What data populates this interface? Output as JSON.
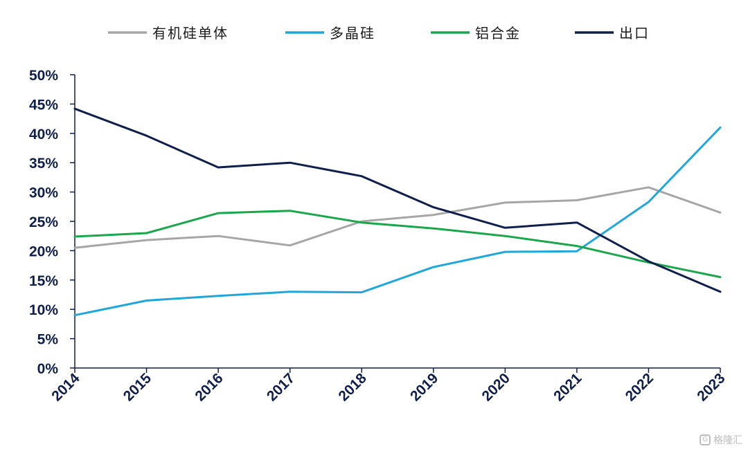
{
  "chart_data": {
    "type": "line",
    "categories": [
      "2014",
      "2015",
      "2016",
      "2017",
      "2018",
      "2019",
      "2020",
      "2021",
      "2022",
      "2023"
    ],
    "ylim": [
      0,
      50
    ],
    "yticks": [
      "0%",
      "5%",
      "10%",
      "15%",
      "20%",
      "25%",
      "30%",
      "35%",
      "40%",
      "45%",
      "50%"
    ],
    "legend_position": "top",
    "grid": false,
    "series": [
      {
        "name": "有机硅单体",
        "color": "#a6a6a6",
        "values": [
          20.5,
          21.8,
          22.5,
          20.9,
          25.0,
          26.1,
          28.2,
          28.6,
          30.8,
          26.5
        ]
      },
      {
        "name": "多晶硅",
        "color": "#1fa7dc",
        "values": [
          9.0,
          11.5,
          12.3,
          13.0,
          12.9,
          17.2,
          19.8,
          19.9,
          28.3,
          41.0
        ]
      },
      {
        "name": "铝合金",
        "color": "#1aa64a",
        "values": [
          22.4,
          23.0,
          26.4,
          26.8,
          24.8,
          23.8,
          22.5,
          20.8,
          18.0,
          15.5
        ]
      },
      {
        "name": "出口",
        "color": "#0f1f4b",
        "values": [
          44.2,
          39.6,
          34.2,
          35.0,
          32.7,
          27.4,
          23.9,
          24.8,
          18.2,
          13.0
        ]
      }
    ],
    "axis_color": "#0f1f4b"
  },
  "watermark": {
    "icon": "gelonghui-logo-icon",
    "text": "格隆汇"
  }
}
